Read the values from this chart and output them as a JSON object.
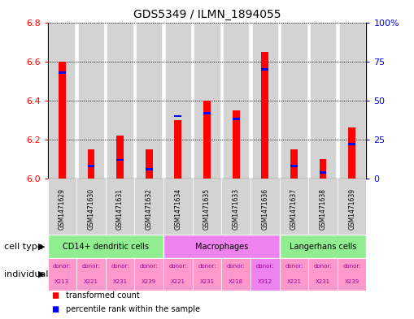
{
  "title": "GDS5349 / ILMN_1894055",
  "samples": [
    "GSM1471629",
    "GSM1471630",
    "GSM1471631",
    "GSM1471632",
    "GSM1471634",
    "GSM1471635",
    "GSM1471633",
    "GSM1471636",
    "GSM1471637",
    "GSM1471638",
    "GSM1471639"
  ],
  "red_values": [
    6.6,
    6.15,
    6.22,
    6.15,
    6.3,
    6.4,
    6.35,
    6.65,
    6.15,
    6.1,
    6.26
  ],
  "blue_values_pct": [
    68,
    8,
    12,
    6,
    40,
    42,
    38,
    70,
    8,
    4,
    22
  ],
  "ylim_left": [
    6.0,
    6.8
  ],
  "ylim_right": [
    0,
    100
  ],
  "yticks_left": [
    6.0,
    6.2,
    6.4,
    6.6,
    6.8
  ],
  "yticks_right": [
    0,
    25,
    50,
    75,
    100
  ],
  "ytick_labels_right": [
    "0",
    "25",
    "50",
    "75",
    "100%"
  ],
  "cell_type_groups": [
    {
      "label": "CD14+ dendritic cells",
      "start": 0,
      "end": 3,
      "color": "#90EE90"
    },
    {
      "label": "Macrophages",
      "start": 4,
      "end": 7,
      "color": "#EE82EE"
    },
    {
      "label": "Langerhans cells",
      "start": 8,
      "end": 10,
      "color": "#90EE90"
    }
  ],
  "individual_labels": [
    {
      "donor": "X213",
      "color": "#FF99CC"
    },
    {
      "donor": "X221",
      "color": "#FF99CC"
    },
    {
      "donor": "X231",
      "color": "#FF99CC"
    },
    {
      "donor": "X239",
      "color": "#FF99CC"
    },
    {
      "donor": "X221",
      "color": "#FF99CC"
    },
    {
      "donor": "X231",
      "color": "#FF99CC"
    },
    {
      "donor": "X218",
      "color": "#FF99CC"
    },
    {
      "donor": "X312",
      "color": "#EE82EE"
    },
    {
      "donor": "X221",
      "color": "#FF99CC"
    },
    {
      "donor": "X231",
      "color": "#FF99CC"
    },
    {
      "donor": "X239",
      "color": "#FF99CC"
    }
  ],
  "legend_items": [
    {
      "label": "transformed count",
      "color": "red"
    },
    {
      "label": "percentile rank within the sample",
      "color": "blue"
    }
  ],
  "sample_bg_color": "#D3D3D3",
  "plot_bg_color": "#FFFFFF"
}
